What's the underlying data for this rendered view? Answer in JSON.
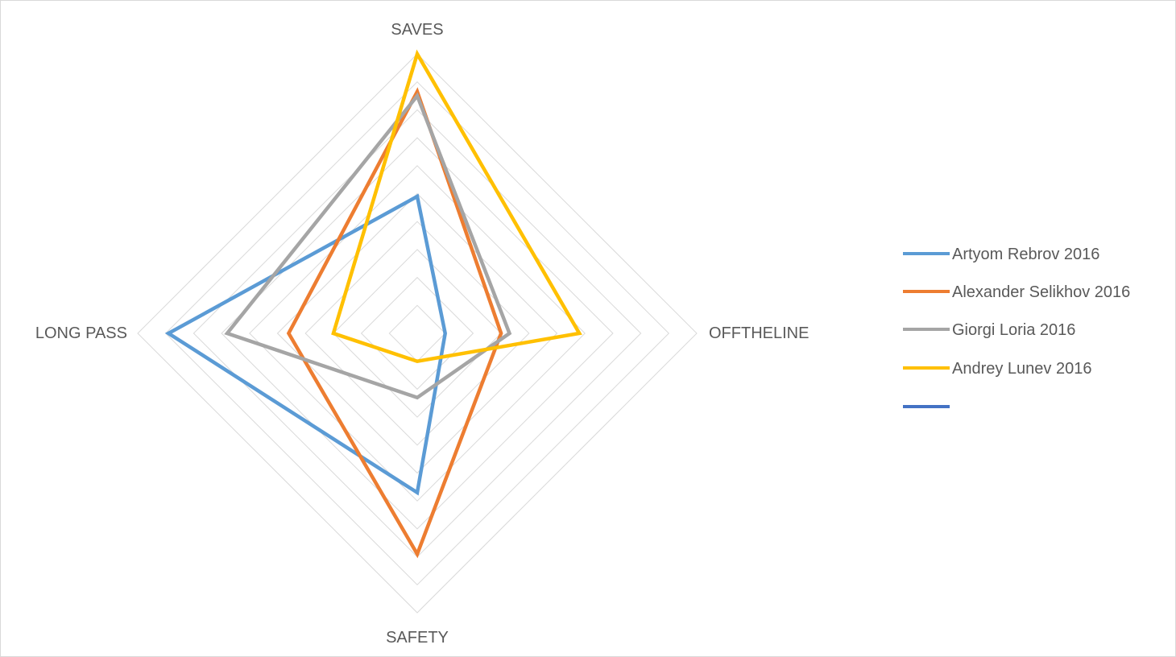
{
  "chart_data": {
    "type": "radar",
    "title": "",
    "axes": [
      "SAVES",
      "OFFTHELINE",
      "SAFETY",
      "LONG PASS"
    ],
    "rlim": [
      0,
      10
    ],
    "grid_rings": 10,
    "grid": true,
    "legend_position": "right",
    "series": [
      {
        "name": "Artyom Rebrov 2016",
        "color": "#5b9bd5",
        "values": [
          4.9,
          1.0,
          5.7,
          8.9
        ]
      },
      {
        "name": "Alexander Selikhov 2016",
        "color": "#ed7d31",
        "values": [
          8.65,
          3.0,
          7.9,
          4.6
        ]
      },
      {
        "name": "Giorgi Loria 2016",
        "color": "#a5a5a5",
        "values": [
          8.5,
          3.3,
          2.3,
          6.8
        ]
      },
      {
        "name": "Andrey Lunev 2016",
        "color": "#ffc000",
        "values": [
          10.0,
          5.8,
          1.0,
          3.0
        ]
      },
      {
        "name": "",
        "color": "#4472c4",
        "values": []
      }
    ]
  }
}
